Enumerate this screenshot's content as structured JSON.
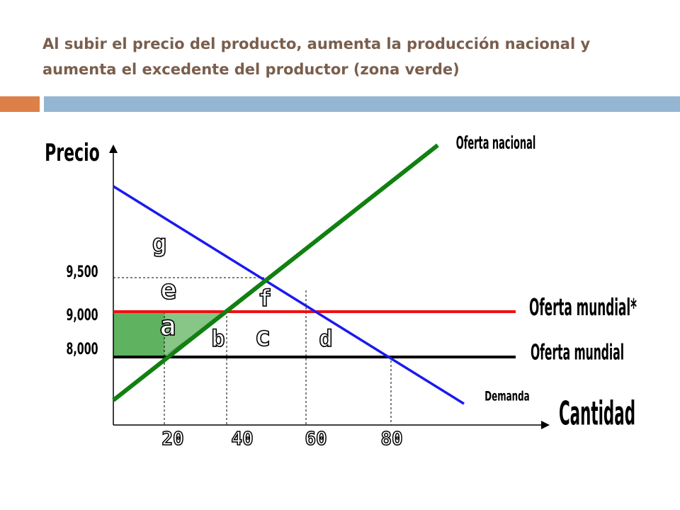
{
  "title": "Al subir el precio del producto, aumenta la producción nacional y aumenta el excedente del productor (zona verde)",
  "colors": {
    "title": "#7a5e4c",
    "accent_orange": "#dd8047",
    "accent_blue": "#94b6d2",
    "oferta_nacional": "#118011",
    "demanda": "#1a1af0",
    "oferta_mundial_star": "#ee1111",
    "oferta_mundial": "#000000",
    "surplus_fill": "#5fb25f"
  },
  "chart_data": {
    "type": "line",
    "xlabel": "Cantidad",
    "ylabel": "Precio",
    "x_ticks": [
      "20",
      "40",
      "60",
      "80"
    ],
    "y_ticks": [
      "9,500",
      "9,000",
      "8,000"
    ],
    "series": [
      {
        "name": "Oferta nacional",
        "points": [
          [
            0,
            7200
          ],
          [
            105,
            12000
          ]
        ]
      },
      {
        "name": "Demanda",
        "points": [
          [
            0,
            10700
          ],
          [
            110,
            7000
          ]
        ]
      },
      {
        "name": "Oferta mundial*",
        "points": [
          [
            0,
            9000
          ],
          [
            130,
            9000
          ]
        ]
      },
      {
        "name": "Oferta mundial",
        "points": [
          [
            0,
            8000
          ],
          [
            130,
            8000
          ]
        ]
      }
    ],
    "area_labels": [
      "g",
      "e",
      "f",
      "a",
      "b",
      "c",
      "d"
    ],
    "shaded_region": "excedente del productor (zona verde)"
  }
}
